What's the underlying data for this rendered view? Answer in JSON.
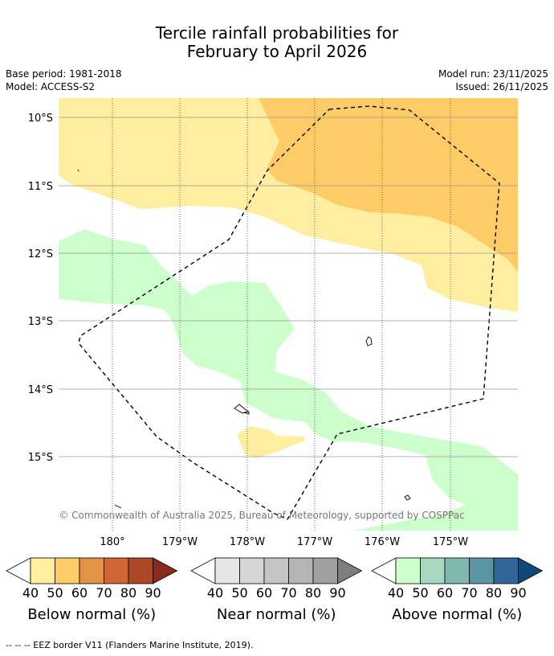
{
  "header": {
    "title_line1": "Tercile rainfall probabilities for",
    "title_line2": "February to April 2026",
    "base_period": "Base period: 1981-2018",
    "model": "Model: ACCESS-S2",
    "model_run": "Model run: 23/11/2025",
    "issued": "Issued: 26/11/2025"
  },
  "chart_data": {
    "type": "map",
    "title": "Tercile rainfall probabilities for February to April 2026",
    "lat_ticks": [
      "10°S",
      "11°S",
      "12°S",
      "13°S",
      "14°S",
      "15°S"
    ],
    "lon_ticks": [
      "180°",
      "179°W",
      "178°W",
      "177°W",
      "176°W",
      "175°W"
    ],
    "copyright": "© Commonwealth of Australia 2025, Bureau of Meteorology, supported by COSPPac",
    "regions": [
      {
        "category": "Below normal",
        "probability": "40-50",
        "area": "northern and western band"
      },
      {
        "category": "Below normal",
        "probability": "50-60",
        "area": "north-east"
      },
      {
        "category": "Below normal",
        "probability": "40-50",
        "area": "small patch near 15°S 178°W"
      },
      {
        "category": "Above normal",
        "probability": "40-50",
        "area": "diagonal band from 12°S 180° to 16°S 175°W"
      }
    ],
    "legends": [
      {
        "label": "Below normal (%)",
        "ticks": [
          "40",
          "50",
          "60",
          "70",
          "80",
          "90"
        ],
        "colors": [
          "#FFEDA0",
          "#FECC66",
          "#E09444",
          "#CF6634",
          "#AD4826",
          "#8A2A1C"
        ]
      },
      {
        "label": "Near normal (%)",
        "ticks": [
          "40",
          "50",
          "60",
          "70",
          "80",
          "90"
        ],
        "colors": [
          "#E6E6E6",
          "#D6D6D6",
          "#C5C5C5",
          "#B4B4B4",
          "#A0A0A0",
          "#7E7E7E"
        ]
      },
      {
        "label": "Above normal (%)",
        "ticks": [
          "40",
          "50",
          "60",
          "70",
          "80",
          "90"
        ],
        "colors": [
          "#CCFFCC",
          "#A6D8BE",
          "#80B8B0",
          "#5A96A2",
          "#326699",
          "#10487A"
        ]
      }
    ]
  },
  "colors": {
    "background": "#ffffff",
    "grid": "#444444"
  },
  "footer": {
    "eez_note": "--  --  -- EEZ border V11 (Flanders Marine Institute, 2019)."
  }
}
